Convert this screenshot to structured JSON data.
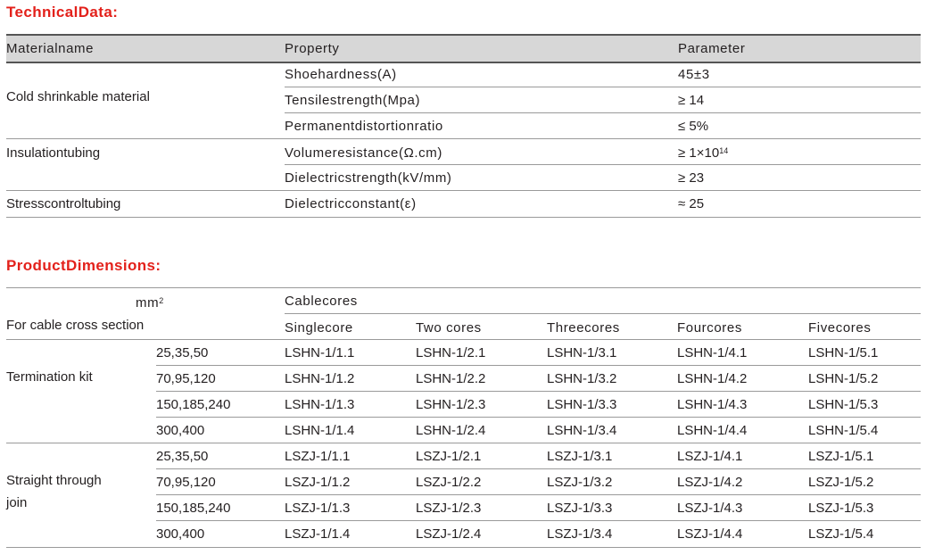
{
  "technical": {
    "title": "TechnicalData:",
    "headers": [
      "Materialname",
      "Property",
      "Parameter"
    ],
    "groups": [
      {
        "name": "Cold shrinkable material",
        "rows": [
          {
            "property": "Shoehardness(A)",
            "parameter": "45±3"
          },
          {
            "property": "Tensilestrength(Mpa)",
            "parameter": "≥ 14"
          },
          {
            "property": "Permanentdistortionratio",
            "parameter": "≤ 5%"
          }
        ]
      },
      {
        "name": "Insulationtubing",
        "rows": [
          {
            "property": "Volumeresistance(Ω.cm)",
            "parameter": "≥ 1×10",
            "sup": "14"
          },
          {
            "property": "Dielectricstrength(kV/mm)",
            "parameter": "≥ 23"
          }
        ]
      },
      {
        "name": "Stresscontroltubing",
        "rows": [
          {
            "property": "Dielectricconstant(ε)",
            "parameter": "≈ 25"
          }
        ]
      }
    ]
  },
  "dimensions": {
    "title": "ProductDimensions:",
    "unit": "mm",
    "unit_sup": "2",
    "cross_section_label": "For cable cross section",
    "cablecores_label": "Cablecores",
    "core_headers": [
      "Singlecore",
      "Two cores",
      "Threecores",
      "Fourcores",
      "Fivecores"
    ],
    "groups": [
      {
        "name_lines": [
          "Termination kit"
        ],
        "rows": [
          {
            "section": "25,35,50",
            "codes": [
              "LSHN-1/1.1",
              "LSHN-1/2.1",
              "LSHN-1/3.1",
              "LSHN-1/4.1",
              "LSHN-1/5.1"
            ]
          },
          {
            "section": "70,95,120",
            "codes": [
              "LSHN-1/1.2",
              "LSHN-1/2.2",
              "LSHN-1/3.2",
              "LSHN-1/4.2",
              "LSHN-1/5.2"
            ]
          },
          {
            "section": "150,185,240",
            "codes": [
              "LSHN-1/1.3",
              "LSHN-1/2.3",
              "LSHN-1/3.3",
              "LSHN-1/4.3",
              "LSHN-1/5.3"
            ]
          },
          {
            "section": "300,400",
            "codes": [
              "LSHN-1/1.4",
              "LSHN-1/2.4",
              "LSHN-1/3.4",
              "LSHN-1/4.4",
              "LSHN-1/5.4"
            ]
          }
        ]
      },
      {
        "name_lines": [
          "Straight through",
          "join"
        ],
        "rows": [
          {
            "section": "25,35,50",
            "codes": [
              "LSZJ-1/1.1",
              "LSZJ-1/2.1",
              "LSZJ-1/3.1",
              "LSZJ-1/4.1",
              "LSZJ-1/5.1"
            ]
          },
          {
            "section": "70,95,120",
            "codes": [
              "LSZJ-1/1.2",
              "LSZJ-1/2.2",
              "LSZJ-1/3.2",
              "LSZJ-1/4.2",
              "LSZJ-1/5.2"
            ]
          },
          {
            "section": "150,185,240",
            "codes": [
              "LSZJ-1/1.3",
              "LSZJ-1/2.3",
              "LSZJ-1/3.3",
              "LSZJ-1/4.3",
              "LSZJ-1/5.3"
            ]
          },
          {
            "section": "300,400",
            "codes": [
              "LSZJ-1/1.4",
              "LSZJ-1/2.4",
              "LSZJ-1/3.4",
              "LSZJ-1/4.4",
              "LSZJ-1/5.4"
            ]
          }
        ]
      }
    ]
  },
  "colors": {
    "heading_red": "#e3211b",
    "header_gray": "#d7d7d7",
    "rule_gray": "#9a9a9a",
    "text": "#231f20"
  }
}
